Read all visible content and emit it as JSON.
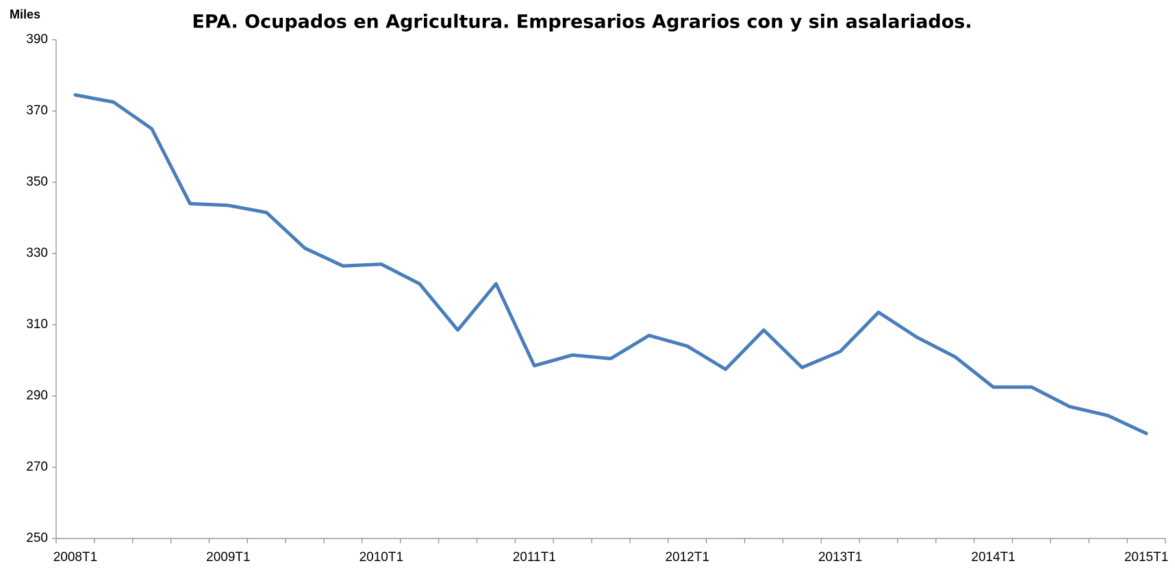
{
  "chart_data": {
    "type": "line",
    "title": "EPA. Ocupados en Agricultura. Empresarios Agrarios con y sin asalariados.",
    "y_label": "Miles",
    "categories": [
      "2008T1",
      null,
      null,
      null,
      "2009T1",
      null,
      null,
      null,
      "2010T1",
      null,
      null,
      null,
      "2011T1",
      null,
      null,
      null,
      "2012T1",
      null,
      null,
      null,
      "2013T1",
      null,
      null,
      null,
      "2014T1",
      null,
      null,
      null,
      "2015T1"
    ],
    "series": [
      {
        "name": "Empresarios Agrarios",
        "color": "#4a7ebb",
        "values": [
          374.5,
          372.5,
          365,
          344,
          343.5,
          341.5,
          331.5,
          326.5,
          327,
          321.5,
          308.5,
          321.5,
          298.5,
          301.5,
          300.5,
          307,
          304,
          297.5,
          308.5,
          298,
          302.5,
          313.5,
          306.5,
          301,
          292.5,
          292.5,
          287,
          284.5,
          279.5
        ]
      }
    ],
    "ylim": [
      250,
      390
    ],
    "yticks": [
      250,
      270,
      290,
      310,
      330,
      350,
      370,
      390
    ],
    "grid": false
  }
}
